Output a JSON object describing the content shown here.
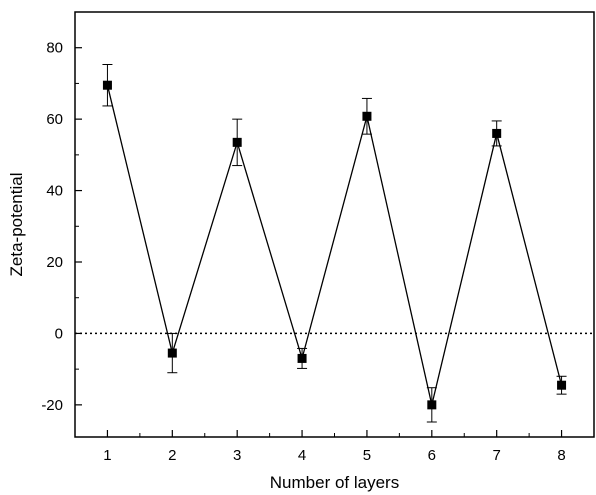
{
  "chart_data": {
    "type": "line",
    "xlabel": "Number of layers",
    "ylabel": "Zeta-potential",
    "xlim": [
      0.5,
      8.5
    ],
    "ylim": [
      -29,
      90
    ],
    "x_ticks": [
      1,
      2,
      3,
      4,
      5,
      6,
      7,
      8
    ],
    "y_ticks": [
      -20,
      0,
      20,
      40,
      60,
      80
    ],
    "grid": false,
    "legend": "none",
    "reference_line": {
      "y": 0,
      "style": "dotted"
    },
    "series": [
      {
        "marker": "square",
        "color": "#000000",
        "x": [
          1,
          2,
          3,
          4,
          5,
          6,
          7,
          8
        ],
        "y": [
          69.5,
          -5.5,
          53.5,
          -7.0,
          60.8,
          -20.0,
          56.0,
          -14.5
        ],
        "error": [
          5.8,
          5.5,
          6.5,
          2.8,
          5.0,
          4.8,
          3.5,
          2.5
        ]
      }
    ]
  }
}
